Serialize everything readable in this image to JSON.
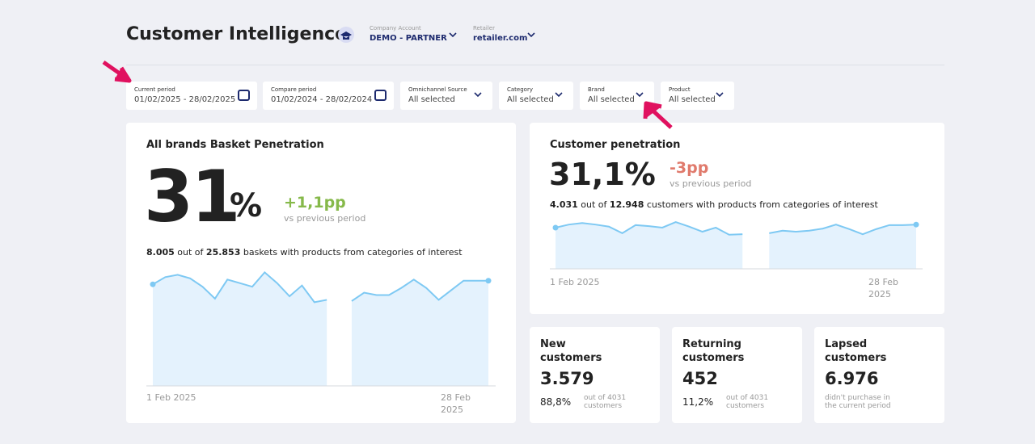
{
  "header": {
    "title": "Customer Intelligence",
    "company_label": "Company Account",
    "company": "DEMO - PARTNER",
    "retailer_label": "Retailer",
    "retailer": "retailer.com"
  },
  "filters": [
    {
      "label": "Current period",
      "value": "01/02/2025 - 28/02/2025",
      "icon": "calendar"
    },
    {
      "label": "Compare period",
      "value": "01/02/2024 - 28/02/2024",
      "icon": "calendar"
    },
    {
      "label": "Omnichannel Source",
      "value": "All selected",
      "icon": "chevron"
    },
    {
      "label": "Category",
      "value": "All selected",
      "icon": "chevron"
    },
    {
      "label": "Brand",
      "value": "All selected",
      "icon": "chevron"
    },
    {
      "label": "Product",
      "value": "All selected",
      "icon": "chevron"
    }
  ],
  "basket": {
    "title": "All brands Basket Penetration",
    "value": "31",
    "unit": "%",
    "delta": "+1,1pp",
    "delta_note": "vs previous period",
    "count": "8.005",
    "out_of": "out of",
    "total": "25.853",
    "tail": "baskets with products from categories of interest",
    "chart": {
      "type": "area",
      "ylim": [
        0,
        100
      ],
      "x": [
        "1 Feb 2025",
        null,
        null,
        null,
        null,
        null,
        null,
        null,
        null,
        null,
        null,
        null,
        null,
        null,
        null,
        null,
        null,
        null,
        null,
        null,
        null,
        null,
        null,
        null,
        null,
        null,
        null,
        "28 Feb 2025"
      ],
      "values": [
        85,
        91,
        93,
        90,
        83,
        73,
        89,
        86,
        83,
        95,
        86,
        75,
        84,
        70,
        72,
        null,
        71,
        78,
        76,
        76,
        82,
        89,
        82,
        72,
        80,
        88,
        88,
        88
      ]
    }
  },
  "customer": {
    "title": "Customer penetration",
    "value": "31,1%",
    "delta": "-3pp",
    "delta_note": "vs previous period",
    "count": "4.031",
    "out_of": "out of",
    "total": "12.948",
    "tail": "customers with products from categories of interest",
    "chart": {
      "type": "area",
      "ylim": [
        0,
        100
      ],
      "x": [
        "1 Feb 2025",
        null,
        null,
        null,
        null,
        null,
        null,
        null,
        null,
        null,
        null,
        null,
        null,
        null,
        null,
        null,
        null,
        null,
        null,
        null,
        null,
        null,
        null,
        null,
        null,
        null,
        null,
        "28 Feb 2025"
      ],
      "values": [
        81,
        87,
        90,
        87,
        83,
        70,
        86,
        84,
        81,
        92,
        83,
        73,
        81,
        67,
        68,
        null,
        70,
        75,
        73,
        75,
        79,
        87,
        78,
        68,
        78,
        86,
        86,
        87
      ]
    }
  },
  "cards": [
    {
      "title": "New customers",
      "value": "3.579",
      "pct": "88,8%",
      "note": "out of 4031 customers"
    },
    {
      "title": "Returning customers",
      "value": "452",
      "pct": "11,2%",
      "note": "out of 4031 customers"
    },
    {
      "title": "Lapsed customers",
      "value": "6.976",
      "note": "didn't purchase in the current period"
    }
  ]
}
